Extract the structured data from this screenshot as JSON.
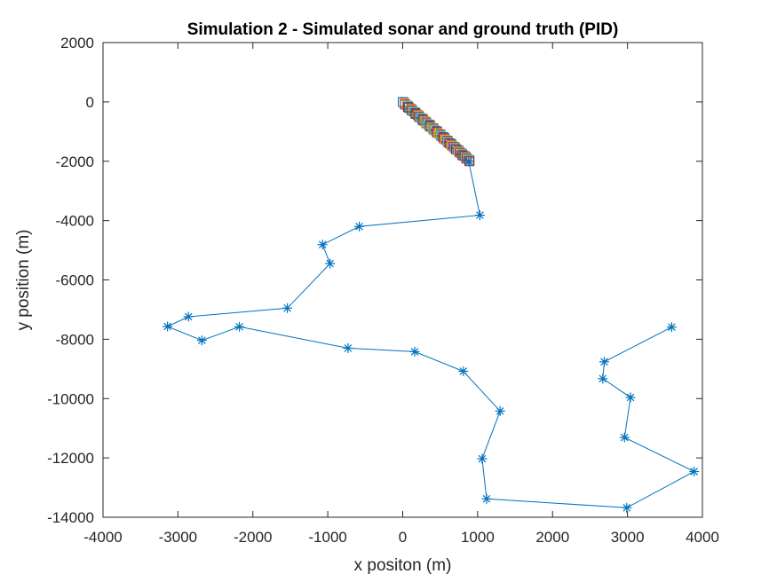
{
  "chart_data": {
    "type": "scatter",
    "title": "Simulation 2 - Simulated sonar and ground truth (PID)",
    "xlabel": "x positon (m)",
    "ylabel": "y position (m)",
    "xlim": [
      -4000,
      4000
    ],
    "ylim": [
      -14000,
      2000
    ],
    "xticks": [
      -4000,
      -3000,
      -2000,
      -1000,
      0,
      1000,
      2000,
      3000,
      4000
    ],
    "yticks": [
      2000,
      0,
      -2000,
      -4000,
      -6000,
      -8000,
      -10000,
      -12000,
      -14000
    ],
    "xtick_labels": [
      "-4000",
      "-3000",
      "-2000",
      "-1000",
      "0",
      "1000",
      "2000",
      "3000",
      "4000"
    ],
    "ytick_labels": [
      "2000",
      "0",
      "-2000",
      "-4000",
      "-6000",
      "-8000",
      "-10000",
      "-12000",
      "-14000"
    ],
    "grid": false,
    "ground_truth": {
      "color": "#0072bd",
      "marker": "asterisk",
      "x": [
        880,
        1030,
        -580,
        -1070,
        -970,
        -1540,
        -2860,
        -3140,
        -2680,
        -2180,
        -730,
        160,
        810,
        1300,
        1060,
        1120,
        2990,
        3890,
        2960,
        3040,
        2670,
        2690,
        3590
      ],
      "y": [
        -2000,
        -3820,
        -4200,
        -4810,
        -5450,
        -6950,
        -7240,
        -7570,
        -8040,
        -7580,
        -8300,
        -8420,
        -9080,
        -10420,
        -12030,
        -13380,
        -13680,
        -12460,
        -11310,
        -9960,
        -9330,
        -8760,
        -7590
      ]
    },
    "sonar": {
      "marker": "square",
      "x_start": 0,
      "y_start": 0,
      "x_end": 900,
      "y_end": -2000,
      "colors": [
        "#0072bd",
        "#d95319",
        "#edb120",
        "#7e2f8e",
        "#77ac30",
        "#4dbeee",
        "#a2142f"
      ]
    }
  }
}
